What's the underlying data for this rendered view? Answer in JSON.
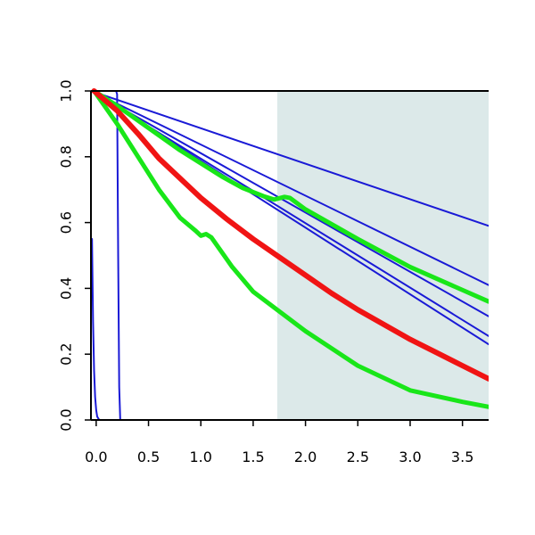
{
  "chart_data": {
    "type": "line",
    "title": "",
    "xlabel": "",
    "ylabel": "",
    "xlim": [
      -0.05,
      3.75
    ],
    "ylim": [
      0.0,
      1.0
    ],
    "x_ticks": [
      0.0,
      0.5,
      1.0,
      1.5,
      2.0,
      2.5,
      3.0,
      3.5
    ],
    "x_tick_labels": [
      "0.0",
      "0.5",
      "1.0",
      "1.5",
      "2.0",
      "2.5",
      "3.0",
      "3.5"
    ],
    "y_ticks": [
      0.0,
      0.2,
      0.4,
      0.6,
      0.8,
      1.0
    ],
    "y_tick_labels": [
      "0.0",
      "0.2",
      "0.4",
      "0.6",
      "0.8",
      "1.0"
    ],
    "grid": false,
    "legend": "none",
    "shaded_region": {
      "x_from": 1.73,
      "x_to": 3.75,
      "color": "#dce9e9"
    },
    "colors": {
      "blue": "#1a1ad6",
      "green": "#19e619",
      "red": "#f01414",
      "shade": "#dce9e9",
      "axis": "#000000"
    },
    "series": [
      {
        "color": "blue",
        "width": 2,
        "x": [
          -0.05,
          3.75
        ],
        "y": [
          1.0,
          0.59
        ]
      },
      {
        "color": "blue",
        "width": 2,
        "x": [
          -0.05,
          3.75
        ],
        "y": [
          1.0,
          0.41
        ]
      },
      {
        "color": "blue",
        "width": 2,
        "x": [
          -0.05,
          3.75
        ],
        "y": [
          1.0,
          0.315
        ]
      },
      {
        "color": "blue",
        "width": 2,
        "x": [
          -0.05,
          3.75
        ],
        "y": [
          1.0,
          0.255
        ]
      },
      {
        "color": "blue",
        "width": 2,
        "x": [
          -0.05,
          3.75
        ],
        "y": [
          1.0,
          0.23
        ]
      },
      {
        "color": "blue",
        "width": 2,
        "x": [
          -0.04,
          -0.03,
          -0.02,
          -0.01,
          0.0,
          0.01,
          0.02,
          0.03,
          0.04,
          0.06
        ],
        "y": [
          0.55,
          0.3,
          0.15,
          0.07,
          0.03,
          0.01,
          0.005,
          0.0,
          0.0,
          0.0
        ]
      },
      {
        "color": "blue",
        "width": 2,
        "x": [
          -0.02,
          0.0,
          0.05,
          0.1,
          0.15,
          0.19,
          0.2,
          0.21,
          0.22,
          0.23,
          0.3
        ],
        "y": [
          1.0,
          1.0,
          1.0,
          1.0,
          1.0,
          1.0,
          0.99,
          0.5,
          0.1,
          0.0,
          0.0
        ]
      },
      {
        "color": "blue",
        "width": 2,
        "x": [
          -0.05,
          0.2,
          0.5,
          1.0,
          1.5,
          2.0,
          2.5,
          3.0,
          3.5,
          3.75
        ],
        "y": [
          0.0,
          0.0,
          0.0,
          0.0,
          0.0,
          0.0,
          0.0,
          0.0,
          0.0,
          0.0
        ]
      },
      {
        "color": "green",
        "width": 5,
        "x": [
          -0.02,
          0.2,
          0.4,
          0.6,
          0.8,
          1.0,
          1.2,
          1.4,
          1.6,
          1.7,
          1.8,
          1.85,
          2.0,
          2.5,
          3.0,
          3.5,
          3.75
        ],
        "y": [
          1.0,
          0.955,
          0.91,
          0.865,
          0.82,
          0.78,
          0.74,
          0.705,
          0.68,
          0.67,
          0.678,
          0.675,
          0.64,
          0.55,
          0.465,
          0.395,
          0.36
        ]
      },
      {
        "color": "green",
        "width": 5,
        "x": [
          -0.02,
          0.2,
          0.4,
          0.6,
          0.8,
          0.95,
          1.0,
          1.05,
          1.1,
          1.3,
          1.5,
          1.75,
          2.0,
          2.5,
          3.0,
          3.5,
          3.75
        ],
        "y": [
          1.0,
          0.9,
          0.8,
          0.7,
          0.615,
          0.575,
          0.56,
          0.565,
          0.555,
          0.465,
          0.39,
          0.33,
          0.27,
          0.165,
          0.09,
          0.055,
          0.04
        ]
      },
      {
        "color": "red",
        "width": 6,
        "x": [
          -0.02,
          0.2,
          0.4,
          0.6,
          0.8,
          1.0,
          1.25,
          1.5,
          1.75,
          2.0,
          2.25,
          2.5,
          2.75,
          3.0,
          3.25,
          3.5,
          3.75
        ],
        "y": [
          1.0,
          0.94,
          0.87,
          0.795,
          0.735,
          0.675,
          0.61,
          0.55,
          0.495,
          0.44,
          0.385,
          0.335,
          0.29,
          0.245,
          0.205,
          0.165,
          0.125
        ]
      }
    ]
  }
}
